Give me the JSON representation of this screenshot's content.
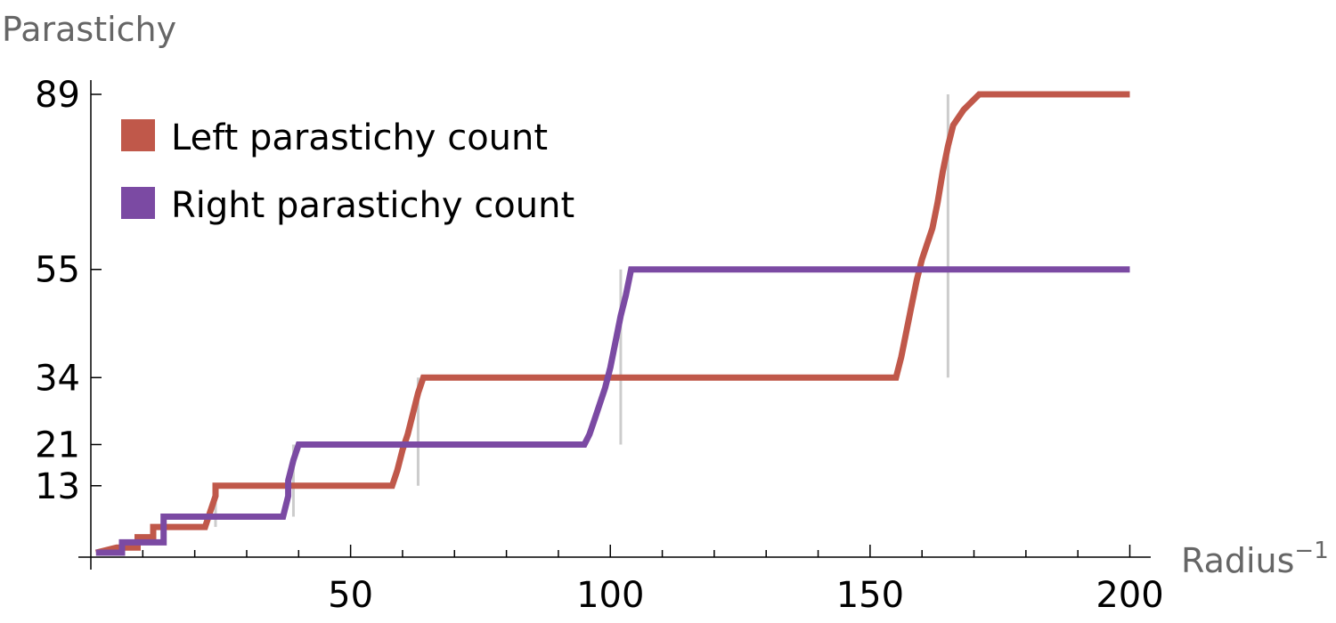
{
  "chart_data": {
    "type": "line",
    "title": "",
    "ylabel": "Parastichy",
    "xlabel": "Radius",
    "xlabel_superscript": "−1",
    "xlim": [
      0,
      203
    ],
    "ylim": [
      0,
      89
    ],
    "x_ticks": [
      50,
      100,
      150,
      200
    ],
    "x_tick_labels": [
      "50",
      "100",
      "150",
      "200"
    ],
    "y_ticks": [
      13,
      21,
      34,
      55,
      89
    ],
    "y_tick_labels": [
      "13",
      "21",
      "34",
      "55",
      "89"
    ],
    "grid": false,
    "legend_position": "top-left",
    "series": [
      {
        "name": "Left parastichy count",
        "color": "#c0584a",
        "points": [
          [
            1,
            0
          ],
          [
            5,
            1
          ],
          [
            9,
            1
          ],
          [
            9,
            3
          ],
          [
            12,
            3
          ],
          [
            12,
            5
          ],
          [
            22,
            5
          ],
          [
            23,
            8
          ],
          [
            24,
            11
          ],
          [
            24,
            13
          ],
          [
            58,
            13
          ],
          [
            59,
            16
          ],
          [
            60,
            20
          ],
          [
            61,
            23
          ],
          [
            62,
            27
          ],
          [
            63,
            31
          ],
          [
            64,
            34
          ],
          [
            155,
            34
          ],
          [
            156,
            38
          ],
          [
            157,
            43
          ],
          [
            158,
            48
          ],
          [
            159,
            53
          ],
          [
            160,
            57
          ],
          [
            162,
            63
          ],
          [
            163,
            68
          ],
          [
            164,
            74
          ],
          [
            165,
            79
          ],
          [
            166,
            83
          ],
          [
            168,
            86
          ],
          [
            170,
            88
          ],
          [
            171,
            89
          ],
          [
            200,
            89
          ]
        ]
      },
      {
        "name": "Right parastichy count",
        "color": "#7b4aa3",
        "points": [
          [
            1,
            0
          ],
          [
            6,
            0
          ],
          [
            6,
            2
          ],
          [
            14,
            2
          ],
          [
            14,
            4
          ],
          [
            14,
            7
          ],
          [
            37,
            7
          ],
          [
            38,
            11
          ],
          [
            38,
            14
          ],
          [
            39,
            18
          ],
          [
            40,
            21
          ],
          [
            95,
            21
          ],
          [
            96,
            23
          ],
          [
            97,
            26
          ],
          [
            98,
            29
          ],
          [
            99,
            32
          ],
          [
            100,
            36
          ],
          [
            101,
            41
          ],
          [
            102,
            46
          ],
          [
            103,
            50
          ],
          [
            104,
            55
          ],
          [
            200,
            55
          ]
        ]
      }
    ],
    "reference_lines": [
      {
        "x": 24,
        "y_from": 5,
        "y_to": 13
      },
      {
        "x": 39,
        "y_from": 7,
        "y_to": 21
      },
      {
        "x": 63,
        "y_from": 13,
        "y_to": 34
      },
      {
        "x": 102,
        "y_from": 21,
        "y_to": 55
      },
      {
        "x": 165,
        "y_from": 34,
        "y_to": 89
      }
    ],
    "colors": {
      "reference_line": "#cccccc",
      "axis": "#000000",
      "axis_title": "#666666"
    }
  }
}
